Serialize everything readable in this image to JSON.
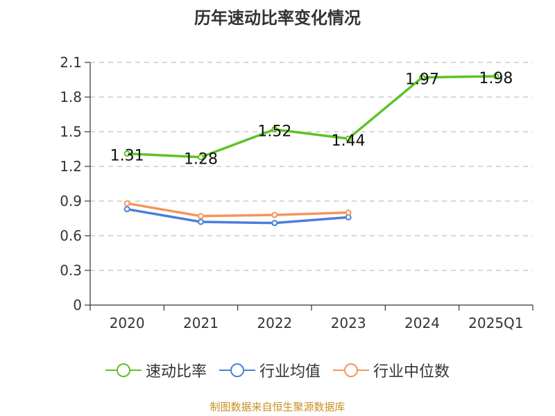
{
  "chart_data": {
    "type": "line",
    "title": "历年速动比率变化情况",
    "categories": [
      "2020",
      "2021",
      "2022",
      "2023",
      "2024",
      "2025Q1"
    ],
    "ylim": [
      0,
      2.1
    ],
    "yticks": [
      "0",
      "0.3",
      "0.6",
      "0.9",
      "1.2",
      "1.5",
      "1.8",
      "2.1"
    ],
    "grid": true,
    "legend_position": "bottom",
    "series": [
      {
        "name": "速动比率",
        "color": "#5ec225",
        "values": [
          1.31,
          1.28,
          1.52,
          1.44,
          1.97,
          1.98
        ],
        "labels": [
          "1.31",
          "1.28",
          "1.52",
          "1.44",
          "1.97",
          "1.98"
        ],
        "show_labels": true
      },
      {
        "name": "行业均值",
        "color": "#4a7fd8",
        "values": [
          0.83,
          0.72,
          0.71,
          0.76,
          null,
          null
        ],
        "show_labels": false
      },
      {
        "name": "行业中位数",
        "color": "#f5955a",
        "values": [
          0.88,
          0.77,
          0.78,
          0.8,
          null,
          null
        ],
        "show_labels": false
      }
    ]
  },
  "footer": "制图数据来自恒生聚源数据库"
}
